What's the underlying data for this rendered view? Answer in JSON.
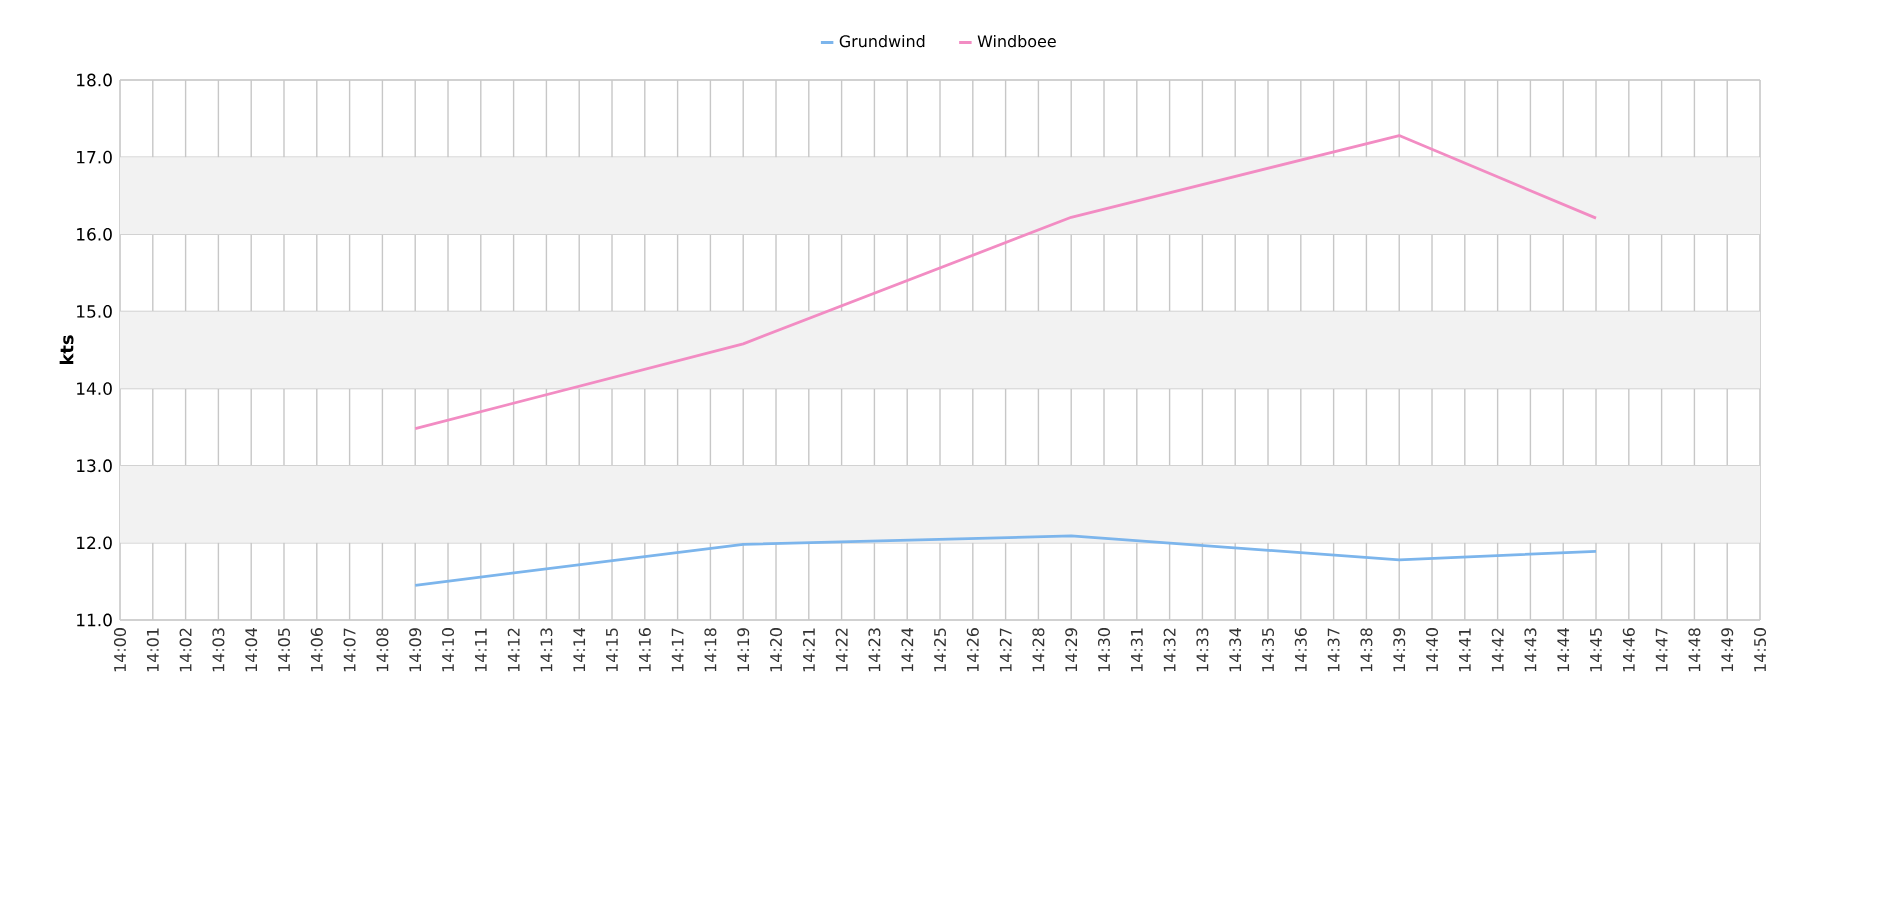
{
  "chart_data": {
    "type": "line",
    "ylabel": "kts",
    "categories": [
      "14:00",
      "14:01",
      "14:02",
      "14:03",
      "14:04",
      "14:05",
      "14:06",
      "14:07",
      "14:08",
      "14:09",
      "14:10",
      "14:11",
      "14:12",
      "14:13",
      "14:14",
      "14:15",
      "14:16",
      "14:17",
      "14:18",
      "14:19",
      "14:20",
      "14:21",
      "14:22",
      "14:23",
      "14:24",
      "14:25",
      "14:26",
      "14:27",
      "14:28",
      "14:29",
      "14:30",
      "14:31",
      "14:32",
      "14:33",
      "14:34",
      "14:35",
      "14:36",
      "14:37",
      "14:38",
      "14:39",
      "14:40",
      "14:41",
      "14:42",
      "14:43",
      "14:44",
      "14:45",
      "14:46",
      "14:47",
      "14:48",
      "14:49",
      "14:50"
    ],
    "series": [
      {
        "name": "Grundwind",
        "color": "#7cb5ec",
        "values": [
          null,
          null,
          null,
          null,
          null,
          null,
          null,
          null,
          null,
          11.45,
          null,
          null,
          null,
          null,
          null,
          null,
          null,
          null,
          null,
          11.98,
          null,
          null,
          null,
          null,
          null,
          null,
          null,
          null,
          null,
          12.09,
          null,
          null,
          null,
          null,
          null,
          null,
          null,
          null,
          null,
          11.78,
          null,
          null,
          null,
          null,
          null,
          11.89,
          null,
          null,
          null,
          null,
          null
        ]
      },
      {
        "name": "Windboee",
        "color": "#f28cc3",
        "values": [
          null,
          null,
          null,
          null,
          null,
          null,
          null,
          null,
          null,
          13.48,
          null,
          null,
          null,
          null,
          null,
          null,
          null,
          null,
          null,
          14.58,
          null,
          null,
          null,
          null,
          null,
          null,
          null,
          null,
          null,
          16.22,
          null,
          null,
          null,
          null,
          null,
          null,
          null,
          null,
          null,
          17.28,
          null,
          null,
          null,
          null,
          null,
          16.21,
          null,
          null,
          null,
          null,
          null
        ]
      }
    ],
    "ylim": [
      11,
      18
    ],
    "yticks": [
      {
        "value": 11,
        "label": "11.0"
      },
      {
        "value": 12,
        "label": "12.0"
      },
      {
        "value": 13,
        "label": "13.0"
      },
      {
        "value": 14,
        "label": "14.0"
      },
      {
        "value": 15,
        "label": "15.0"
      },
      {
        "value": 16,
        "label": "16.0"
      },
      {
        "value": 17,
        "label": "17.0"
      },
      {
        "value": 18,
        "label": "18.0"
      }
    ],
    "bands": [
      {
        "axis": "y",
        "from": 12,
        "to": 13,
        "color": "#f2f2f2"
      },
      {
        "axis": "y",
        "from": 14,
        "to": 15,
        "color": "#f2f2f2"
      },
      {
        "axis": "y",
        "from": 16,
        "to": 17,
        "color": "#f2f2f2"
      }
    ],
    "grid": true,
    "legend": "top",
    "marker": "none",
    "line_style": "solid"
  }
}
